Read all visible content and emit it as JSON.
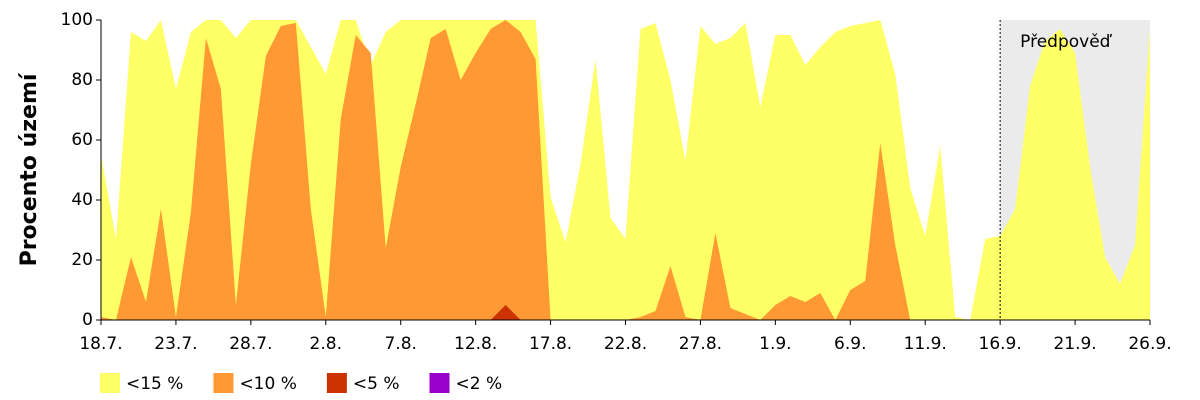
{
  "chart_data": {
    "type": "area",
    "y_label": "Procento území",
    "categories": [
      "18.7.",
      null,
      null,
      null,
      null,
      "23.7.",
      null,
      null,
      null,
      null,
      "28.7.",
      null,
      null,
      null,
      null,
      "2.8.",
      null,
      null,
      null,
      null,
      "7.8.",
      null,
      null,
      null,
      null,
      "12.8.",
      null,
      null,
      null,
      null,
      "17.8.",
      null,
      null,
      null,
      null,
      "22.8.",
      null,
      null,
      null,
      null,
      "27.8.",
      null,
      null,
      null,
      null,
      "1.9.",
      null,
      null,
      null,
      null,
      "6.9.",
      null,
      null,
      null,
      null,
      "11.9.",
      null,
      null,
      null,
      null,
      "16.9.",
      null,
      null,
      null,
      null,
      "21.9.",
      null,
      null,
      null,
      null,
      "26.9."
    ],
    "series": [
      {
        "name": "<15 %",
        "color": "#ffff66",
        "values": [
          55,
          27,
          96,
          93,
          100,
          77,
          96,
          100,
          100,
          94,
          100,
          100,
          100,
          100,
          91,
          82,
          100,
          100,
          85,
          96,
          100,
          100,
          100,
          100,
          100,
          100,
          100,
          100,
          100,
          100,
          41,
          26,
          52,
          87,
          34,
          27,
          97,
          99,
          80,
          53,
          98,
          92,
          94,
          99,
          71,
          95,
          95,
          85,
          91,
          96,
          98,
          99,
          100,
          82,
          44,
          28,
          58,
          1,
          0,
          27,
          28,
          37,
          78,
          93,
          97,
          89,
          51,
          21,
          12,
          25,
          97
        ]
      },
      {
        "name": "<10 %",
        "color": "#ff9933",
        "values": [
          1,
          0,
          21,
          6,
          37,
          1,
          36,
          94,
          77,
          5,
          52,
          88,
          98,
          99,
          37,
          1,
          67,
          95,
          89,
          24,
          51,
          72,
          94,
          97,
          80,
          89,
          97,
          100,
          96,
          87,
          0,
          0,
          0,
          0,
          0,
          0,
          1,
          3,
          18,
          1,
          0,
          29,
          4,
          2,
          0,
          5,
          8,
          6,
          9,
          0,
          10,
          13,
          59,
          25,
          0,
          0,
          0,
          0,
          0,
          0,
          0,
          0,
          0,
          0,
          0,
          0,
          0,
          0,
          0,
          0,
          0
        ]
      },
      {
        "name": "<5 %",
        "color": "#cc3300",
        "values": [
          0,
          0,
          0,
          0,
          0,
          0,
          0,
          0,
          0,
          0,
          0,
          0,
          0,
          0,
          0,
          0,
          0,
          0,
          0,
          0,
          0,
          0,
          0,
          0,
          0,
          0,
          0,
          5,
          0,
          0,
          0,
          0,
          0,
          0,
          0,
          0,
          0,
          0,
          0,
          0,
          0,
          0,
          0,
          0,
          0,
          0,
          0,
          0,
          0,
          0,
          0,
          0,
          0,
          0,
          0,
          0,
          0,
          0,
          0,
          0,
          0,
          0,
          0,
          0,
          0,
          0,
          0,
          0,
          0,
          0,
          0
        ]
      },
      {
        "name": "<2 %",
        "color": "#9900cc",
        "values": [
          0,
          0,
          0,
          0,
          0,
          0,
          0,
          0,
          0,
          0,
          0,
          0,
          0,
          0,
          0,
          0,
          0,
          0,
          0,
          0,
          0,
          0,
          0,
          0,
          0,
          0,
          0,
          0,
          0,
          0,
          0,
          0,
          0,
          0,
          0,
          0,
          0,
          0,
          0,
          0,
          0,
          0,
          0,
          0,
          0,
          0,
          0,
          0,
          0,
          0,
          0,
          0,
          0,
          0,
          0,
          0,
          0,
          0,
          0,
          0,
          0,
          0,
          0,
          0,
          0,
          0,
          0,
          0,
          0,
          0,
          0
        ]
      }
    ],
    "forecast": {
      "label": "Předpověď",
      "start_index": 60,
      "color": "#ebebeb"
    },
    "ylim": [
      0,
      100
    ],
    "yticks": [
      0,
      20,
      40,
      60,
      80,
      100
    ],
    "grid": false
  }
}
